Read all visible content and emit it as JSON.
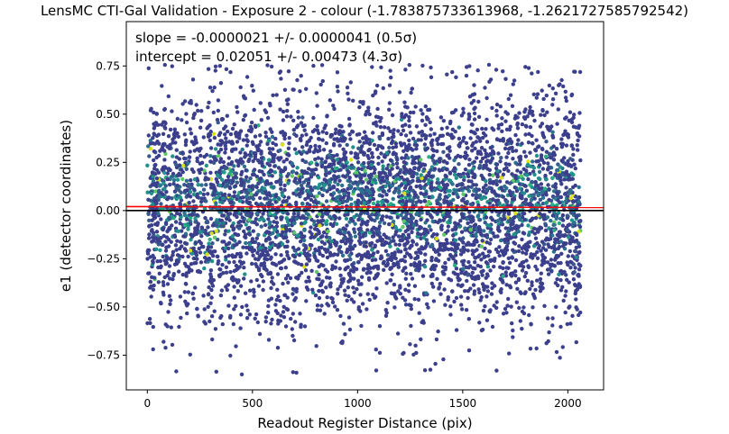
{
  "chart_data": {
    "type": "scatter",
    "title": "LensMC CTI-Gal Validation - Exposure 2 - colour (-1.783875733613968, -1.2621727585792542)",
    "xlabel": "Readout Register Distance (pix)",
    "ylabel": "e1 (detector coordinates)",
    "xlim": [
      -100,
      2170
    ],
    "ylim": [
      -0.93,
      0.98
    ],
    "xticks": [
      0,
      500,
      1000,
      1500,
      2000
    ],
    "yticks": [
      -0.75,
      -0.5,
      -0.25,
      0.0,
      0.25,
      0.5,
      0.75
    ],
    "ytick_labels": [
      "−0.75",
      "−0.50",
      "−0.25",
      "0.00",
      "0.25",
      "0.50",
      "0.75"
    ],
    "annotations": [
      "slope = -0.0000021 +/- 0.0000041 (0.5σ)",
      "intercept = 0.02051 +/- 0.00473 (4.3σ)"
    ],
    "fit_line": {
      "slope": -2.1e-06,
      "intercept": 0.02051,
      "color": "#ff0000"
    },
    "zero_line": {
      "y": 0.0,
      "color": "#000000"
    },
    "points": {
      "count": 5200,
      "x_range": [
        0,
        2060
      ],
      "y_mean": 0.02,
      "y_std": 0.28,
      "y_range": [
        -0.85,
        0.76
      ],
      "colormap": "viridis",
      "color_low": "#3b3f8c",
      "color_mid": "#21918c",
      "color_high": "#d8e219"
    },
    "grid": false,
    "legend": "none"
  }
}
